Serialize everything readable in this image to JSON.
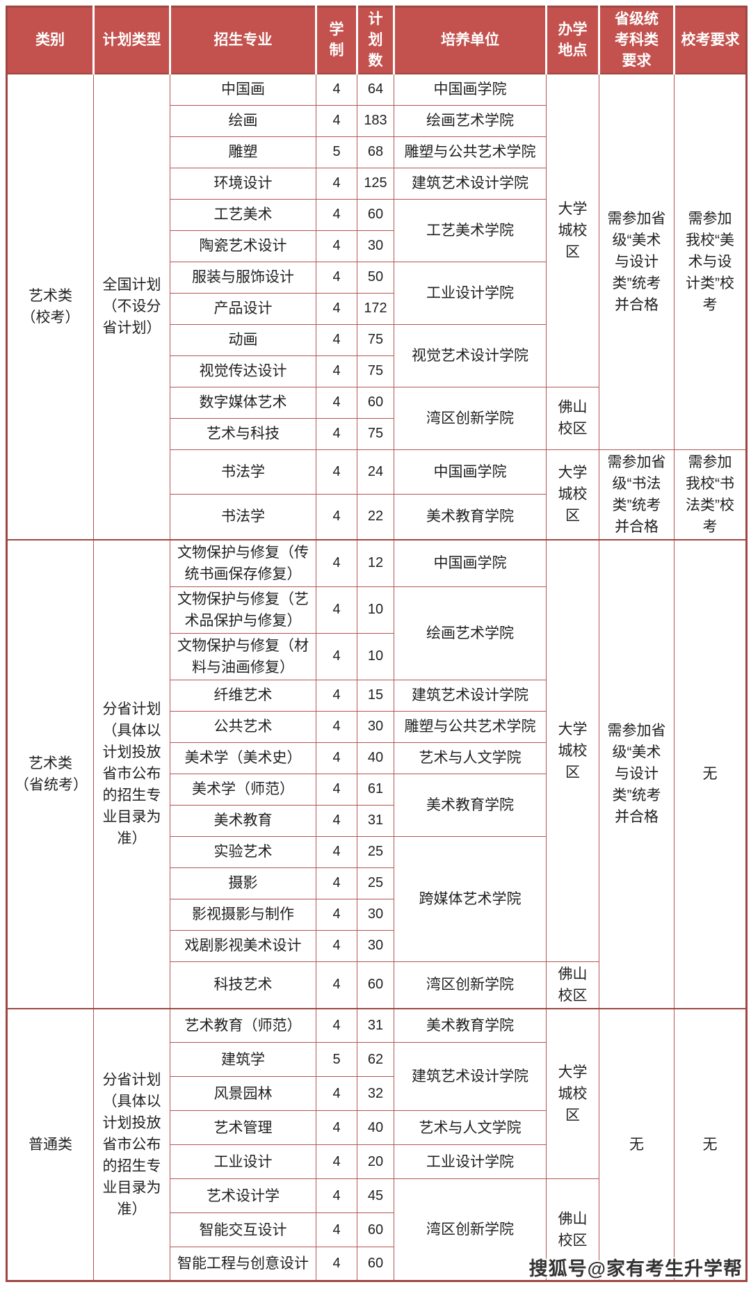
{
  "header": {
    "columns": [
      "类别",
      "计划类型",
      "招生专业",
      "学制",
      "计划数",
      "培养单位",
      "办学地点",
      "省级统考科类要求",
      "校考要求"
    ]
  },
  "sections": [
    {
      "category": "艺术类（校考）",
      "plan_type": "全国计划（不设分省计划）",
      "majors": [
        {
          "name": "中国画",
          "years": "4",
          "plan": "64"
        },
        {
          "name": "绘画",
          "years": "4",
          "plan": "183"
        },
        {
          "name": "雕塑",
          "years": "5",
          "plan": "68"
        },
        {
          "name": "环境设计",
          "years": "4",
          "plan": "125"
        },
        {
          "name": "工艺美术",
          "years": "4",
          "plan": "60"
        },
        {
          "name": "陶瓷艺术设计",
          "years": "4",
          "plan": "30"
        },
        {
          "name": "服装与服饰设计",
          "years": "4",
          "plan": "50"
        },
        {
          "name": "产品设计",
          "years": "4",
          "plan": "172"
        },
        {
          "name": "动画",
          "years": "4",
          "plan": "75"
        },
        {
          "name": "视觉传达设计",
          "years": "4",
          "plan": "75"
        },
        {
          "name": "数字媒体艺术",
          "years": "4",
          "plan": "60"
        },
        {
          "name": "艺术与科技",
          "years": "4",
          "plan": "75"
        },
        {
          "name": "书法学",
          "years": "4",
          "plan": "24"
        },
        {
          "name": "书法学",
          "years": "4",
          "plan": "22"
        }
      ],
      "units": [
        {
          "name": "中国画学院",
          "span": 1
        },
        {
          "name": "绘画艺术学院",
          "span": 1
        },
        {
          "name": "雕塑与公共艺术学院",
          "span": 1
        },
        {
          "name": "建筑艺术设计学院",
          "span": 1
        },
        {
          "name": "工艺美术学院",
          "span": 2
        },
        {
          "name": "工业设计学院",
          "span": 2
        },
        {
          "name": "视觉艺术设计学院",
          "span": 2
        },
        {
          "name": "湾区创新学院",
          "span": 2
        },
        {
          "name": "中国画学院",
          "span": 1
        },
        {
          "name": "美术教育学院",
          "span": 1
        }
      ],
      "locations": [
        {
          "name": "大学城校区",
          "span": 10
        },
        {
          "name": "佛山校区",
          "span": 2
        },
        {
          "name": "大学城校区",
          "span": 2
        }
      ],
      "provincial_exam": [
        {
          "text": "需参加省级“美术与设计类”统考并合格",
          "span": 12
        },
        {
          "text": "需参加省级“书法类”统考并合格",
          "span": 2
        }
      ],
      "school_exam": [
        {
          "text": "需参加我校“美术与设计类”校考",
          "span": 12
        },
        {
          "text": "需参加我校“书法类”校考",
          "span": 2
        }
      ]
    },
    {
      "category": "艺术类（省统考）",
      "plan_type": "分省计划（具体以计划投放省市公布的招生专业目录为准）",
      "majors": [
        {
          "name": "文物保护与修复（传统书画保存修复）",
          "years": "4",
          "plan": "12"
        },
        {
          "name": "文物保护与修复（艺术品保护与修复）",
          "years": "4",
          "plan": "10"
        },
        {
          "name": "文物保护与修复（材料与油画修复）",
          "years": "4",
          "plan": "10"
        },
        {
          "name": "纤维艺术",
          "years": "4",
          "plan": "15"
        },
        {
          "name": "公共艺术",
          "years": "4",
          "plan": "30"
        },
        {
          "name": "美术学（美术史）",
          "years": "4",
          "plan": "40"
        },
        {
          "name": "美术学（师范）",
          "years": "4",
          "plan": "61"
        },
        {
          "name": "美术教育",
          "years": "4",
          "plan": "31"
        },
        {
          "name": "实验艺术",
          "years": "4",
          "plan": "25"
        },
        {
          "name": "摄影",
          "years": "4",
          "plan": "25"
        },
        {
          "name": "影视摄影与制作",
          "years": "4",
          "plan": "30"
        },
        {
          "name": "戏剧影视美术设计",
          "years": "4",
          "plan": "30"
        },
        {
          "name": "科技艺术",
          "years": "4",
          "plan": "60"
        }
      ],
      "units": [
        {
          "name": "中国画学院",
          "span": 1
        },
        {
          "name": "绘画艺术学院",
          "span": 2
        },
        {
          "name": "建筑艺术设计学院",
          "span": 1
        },
        {
          "name": "雕塑与公共艺术学院",
          "span": 1
        },
        {
          "name": "艺术与人文学院",
          "span": 1
        },
        {
          "name": "美术教育学院",
          "span": 2
        },
        {
          "name": "跨媒体艺术学院",
          "span": 4
        },
        {
          "name": "湾区创新学院",
          "span": 1
        }
      ],
      "locations": [
        {
          "name": "大学城校区",
          "span": 12
        },
        {
          "name": "佛山校区",
          "span": 1
        }
      ],
      "provincial_exam": [
        {
          "text": "需参加省级“美术与设计类”统考并合格",
          "span": 13
        }
      ],
      "school_exam": [
        {
          "text": "无",
          "span": 13
        }
      ]
    },
    {
      "category": "普通类",
      "plan_type": "分省计划（具体以计划投放省市公布的招生专业目录为准）",
      "majors": [
        {
          "name": "艺术教育（师范）",
          "years": "4",
          "plan": "31"
        },
        {
          "name": "建筑学",
          "years": "5",
          "plan": "62"
        },
        {
          "name": "风景园林",
          "years": "4",
          "plan": "32"
        },
        {
          "name": "艺术管理",
          "years": "4",
          "plan": "40"
        },
        {
          "name": "工业设计",
          "years": "4",
          "plan": "20"
        },
        {
          "name": "艺术设计学",
          "years": "4",
          "plan": "45"
        },
        {
          "name": "智能交互设计",
          "years": "4",
          "plan": "60"
        },
        {
          "name": "智能工程与创意设计",
          "years": "4",
          "plan": "60"
        }
      ],
      "units": [
        {
          "name": "美术教育学院",
          "span": 1
        },
        {
          "name": "建筑艺术设计学院",
          "span": 2
        },
        {
          "name": "艺术与人文学院",
          "span": 1
        },
        {
          "name": "工业设计学院",
          "span": 1
        },
        {
          "name": "湾区创新学院",
          "span": 3
        }
      ],
      "locations": [
        {
          "name": "大学城校区",
          "span": 5
        },
        {
          "name": "佛山校区",
          "span": 3
        }
      ],
      "provincial_exam": [
        {
          "text": "无",
          "span": 8
        }
      ],
      "school_exam": [
        {
          "text": "无",
          "span": 8
        }
      ]
    }
  ],
  "watermark": "搜狐号@家有考生升学帮",
  "colors": {
    "header_bg": "#c3514d",
    "header_text": "#ffffff",
    "grid_border": "#b25551",
    "outer_border": "#9f4642",
    "body_text": "#1f1f1f"
  }
}
